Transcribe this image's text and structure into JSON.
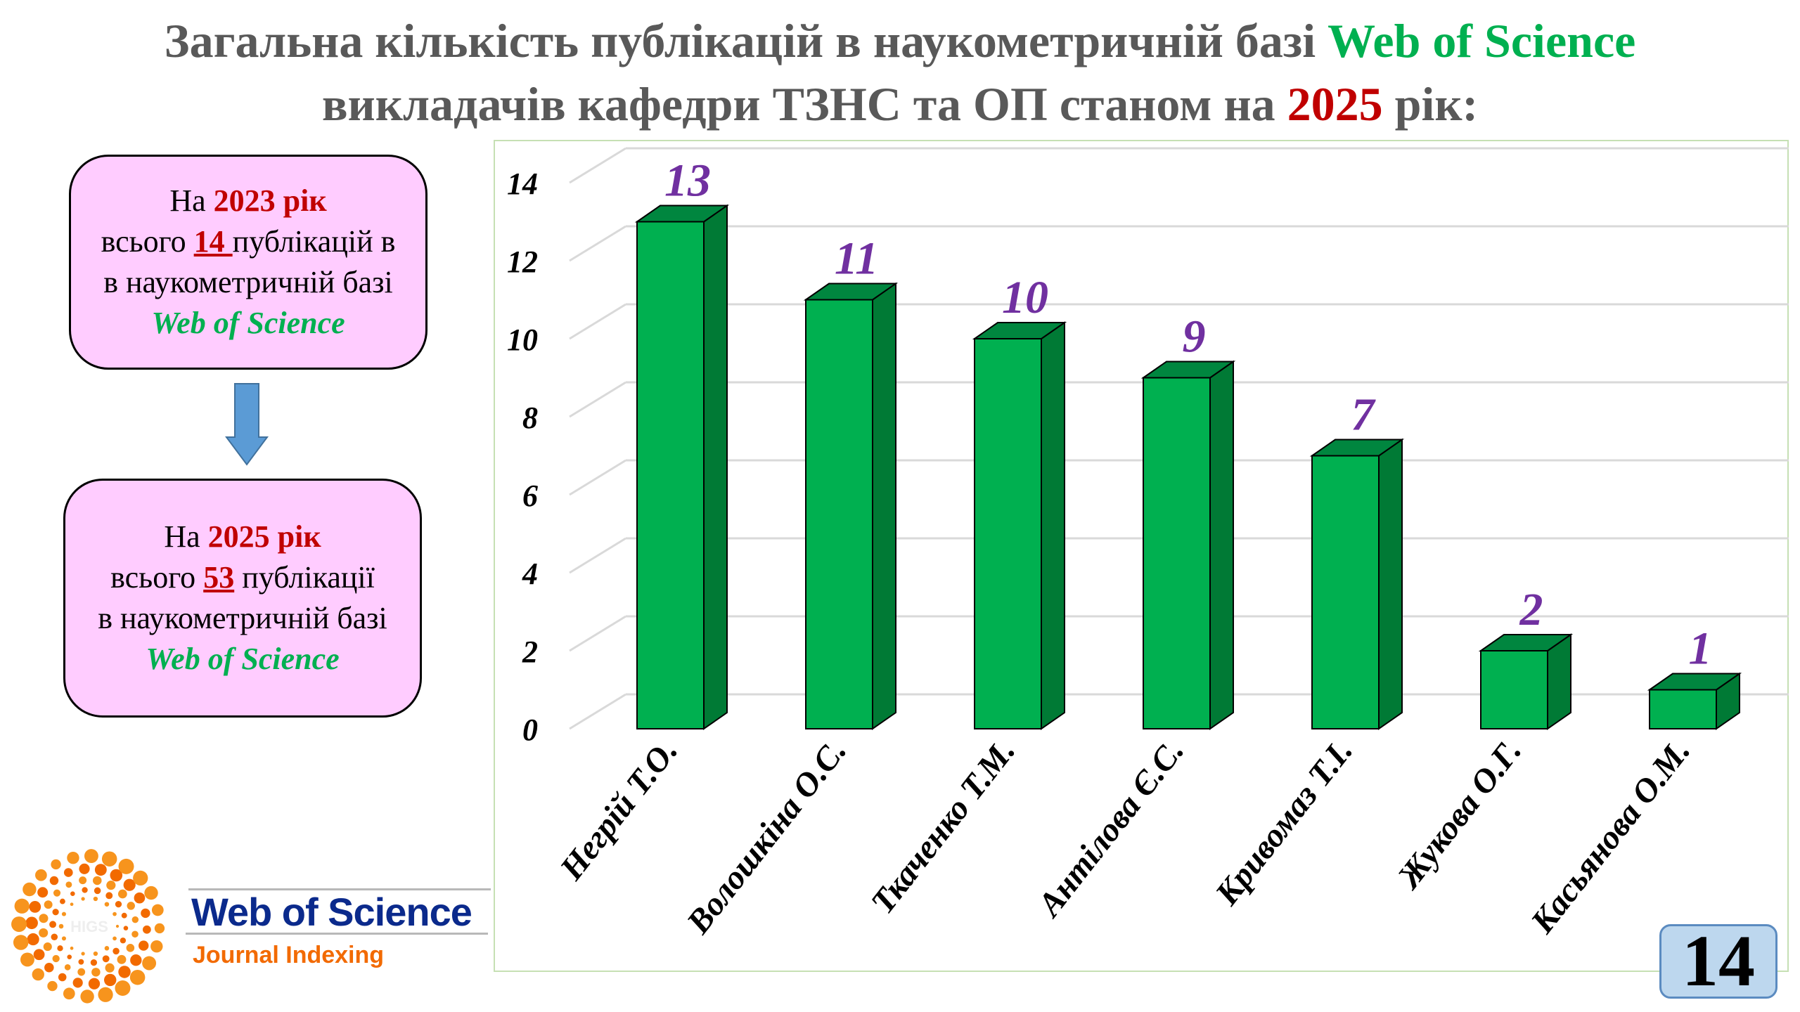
{
  "title": {
    "line1_prefix": "Загальна кількість публікацій в наукометричній базі ",
    "line1_highlight": "Web of Science",
    "line2_prefix": "викладачів кафедри ТЗНС та ОП станом на ",
    "line2_year": "2025",
    "line2_suffix": " рік:"
  },
  "box_2023": {
    "na": "На ",
    "year": "2023 рік",
    "total_prefix": "всього ",
    "count": "14 ",
    "total_suffix": "публікацій в",
    "line3": "в наукометричній базі",
    "db": "Web of Science"
  },
  "box_2025": {
    "na": "На ",
    "year": "2025 рік",
    "total_prefix": "всього ",
    "count": "53",
    "total_suffix": " публікації",
    "line3": "в наукометричній базі",
    "db": "Web of Science"
  },
  "logo": {
    "name": "Web of Science",
    "tagline": "Journal Indexing",
    "watermark": "HIGS"
  },
  "page_number": "14",
  "colors": {
    "bar_front": "#00b050",
    "bar_side": "#007a35",
    "value_label": "#7030a0",
    "box_fill": "#ffccff",
    "accent_red": "#c00000",
    "accent_green": "#00b050"
  },
  "chart_data": {
    "type": "bar",
    "style": "3d-column",
    "categories": [
      "Негрій Т.О.",
      "Волошкіна О.С.",
      "Ткаченко Т.М.",
      "Антілова Є.С.",
      "Кривомаз Т.І.",
      "Жукова О.Г.",
      "Касьянова О.М."
    ],
    "values": [
      13,
      11,
      10,
      9,
      7,
      2,
      1
    ],
    "data_labels": [
      "13",
      "11",
      "10",
      "9",
      "7",
      "2",
      "1"
    ],
    "ylim": [
      0,
      14
    ],
    "yticks": [
      "0",
      "2",
      "4",
      "6",
      "8",
      "10",
      "12",
      "14"
    ],
    "grid": true,
    "legend": "none",
    "title": "",
    "xlabel": "",
    "ylabel": ""
  }
}
